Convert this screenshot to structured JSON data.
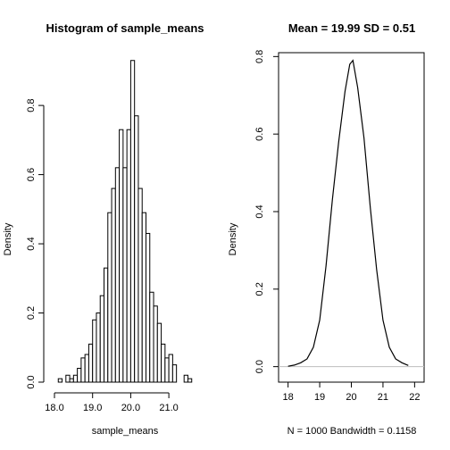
{
  "chart_data": [
    {
      "type": "bar",
      "title": "Histogram of sample_means",
      "xlabel": "sample_means",
      "ylabel": "Density",
      "xlim": [
        18.0,
        21.7
      ],
      "ylim": [
        0,
        0.95
      ],
      "x_ticks": [
        "18.0",
        "19.0",
        "20.0",
        "21.0"
      ],
      "y_ticks": [
        "0.0",
        "0.2",
        "0.4",
        "0.6",
        "0.8"
      ],
      "bin_width": 0.1,
      "bin_starts": [
        18.1,
        18.2,
        18.3,
        18.4,
        18.5,
        18.6,
        18.7,
        18.8,
        18.9,
        19.0,
        19.1,
        19.2,
        19.3,
        19.4,
        19.5,
        19.6,
        19.7,
        19.8,
        19.9,
        20.0,
        20.1,
        20.2,
        20.3,
        20.4,
        20.5,
        20.6,
        20.7,
        20.8,
        20.9,
        21.0,
        21.1,
        21.2,
        21.3,
        21.4,
        21.5
      ],
      "densities": [
        0.01,
        0.0,
        0.02,
        0.01,
        0.02,
        0.04,
        0.07,
        0.08,
        0.11,
        0.18,
        0.2,
        0.25,
        0.33,
        0.49,
        0.56,
        0.62,
        0.73,
        0.62,
        0.73,
        0.93,
        0.77,
        0.56,
        0.49,
        0.43,
        0.26,
        0.22,
        0.17,
        0.11,
        0.07,
        0.08,
        0.05,
        0.0,
        0.0,
        0.02,
        0.01
      ],
      "grid": false
    },
    {
      "type": "line",
      "title": "Mean =  19.99 SD =  0.51",
      "xlabel": "N = 1000   Bandwidth = 0.1158",
      "ylabel": "Density",
      "xlim": [
        17.7,
        22.3
      ],
      "ylim": [
        -0.04,
        0.81
      ],
      "x_ticks": [
        "18",
        "19",
        "20",
        "21",
        "22"
      ],
      "y_ticks": [
        "0.0",
        "0.2",
        "0.4",
        "0.6",
        "0.8"
      ],
      "series": [
        {
          "x": [
            18.0,
            18.2,
            18.4,
            18.6,
            18.8,
            19.0,
            19.2,
            19.4,
            19.6,
            19.8,
            19.95,
            20.05,
            20.2,
            20.4,
            20.6,
            20.8,
            21.0,
            21.2,
            21.4,
            21.6,
            21.8
          ],
          "values": [
            0.001,
            0.004,
            0.01,
            0.02,
            0.05,
            0.12,
            0.26,
            0.43,
            0.58,
            0.71,
            0.78,
            0.79,
            0.72,
            0.59,
            0.41,
            0.25,
            0.12,
            0.05,
            0.02,
            0.01,
            0.003
          ]
        }
      ],
      "grid": false
    }
  ]
}
